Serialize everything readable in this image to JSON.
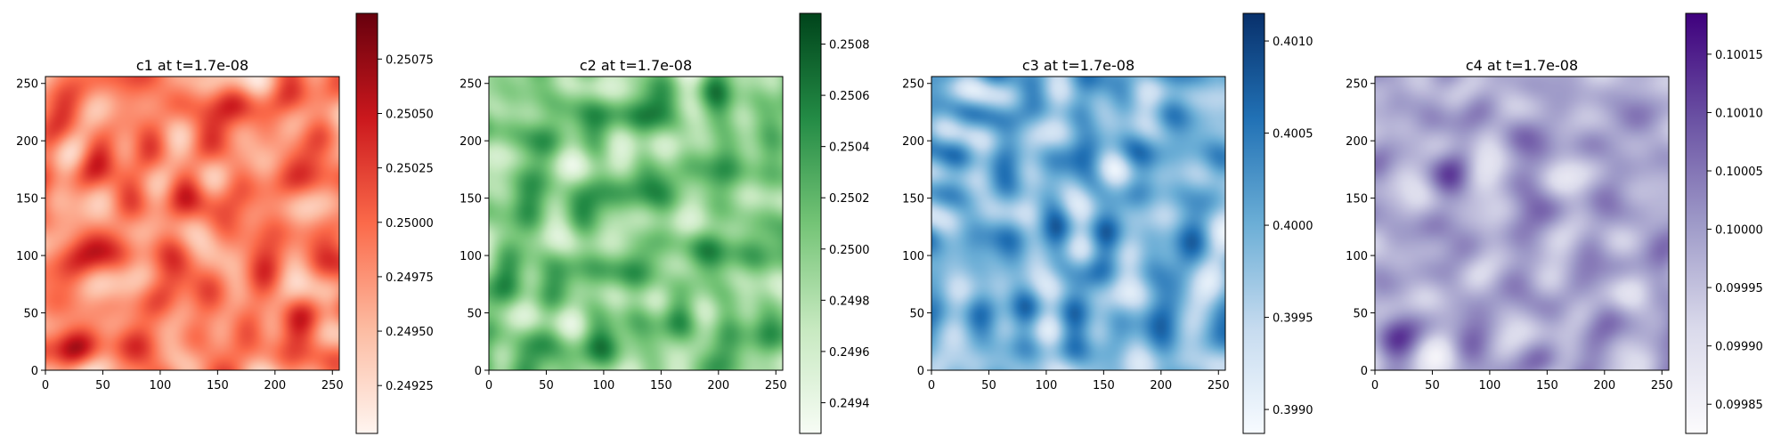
{
  "chart_data": [
    {
      "type": "heatmap",
      "title": "c1 at t=1.7e-08",
      "xlim": [
        0,
        256
      ],
      "ylim": [
        0,
        256
      ],
      "xticks": [
        "0",
        "50",
        "100",
        "150",
        "200",
        "250"
      ],
      "yticks": [
        "0",
        "50",
        "100",
        "150",
        "200",
        "250"
      ],
      "colormap": "Reds",
      "colors": [
        "#fff5f0",
        "#fcbba1",
        "#fb6a4a",
        "#cb181d",
        "#67000d"
      ],
      "color_range": [
        0.24903,
        0.25096
      ],
      "colorbar_ticks": [
        "0.24925",
        "0.24950",
        "0.24975",
        "0.25000",
        "0.25025",
        "0.25050",
        "0.25075"
      ],
      "grid": false
    },
    {
      "type": "heatmap",
      "title": "c2 at t=1.7e-08",
      "xlim": [
        0,
        256
      ],
      "ylim": [
        0,
        256
      ],
      "xticks": [
        "0",
        "50",
        "100",
        "150",
        "200",
        "250"
      ],
      "yticks": [
        "0",
        "50",
        "100",
        "150",
        "200",
        "250"
      ],
      "colormap": "Greens",
      "colors": [
        "#f7fcf5",
        "#c7e9c0",
        "#74c476",
        "#238b45",
        "#00441b"
      ],
      "color_range": [
        0.24928,
        0.25092
      ],
      "colorbar_ticks": [
        "0.2494",
        "0.2496",
        "0.2498",
        "0.2500",
        "0.2502",
        "0.2504",
        "0.2506",
        "0.2508"
      ],
      "grid": false
    },
    {
      "type": "heatmap",
      "title": "c3 at t=1.7e-08",
      "xlim": [
        0,
        256
      ],
      "ylim": [
        0,
        256
      ],
      "xticks": [
        "0",
        "50",
        "100",
        "150",
        "200",
        "250"
      ],
      "yticks": [
        "0",
        "50",
        "100",
        "150",
        "200",
        "250"
      ],
      "colormap": "Blues",
      "colors": [
        "#f7fbff",
        "#c6dbef",
        "#6baed6",
        "#2171b5",
        "#08306b"
      ],
      "color_range": [
        0.39887,
        0.40115
      ],
      "colorbar_ticks": [
        "0.3990",
        "0.3995",
        "0.4000",
        "0.4005",
        "0.4010"
      ],
      "grid": false
    },
    {
      "type": "heatmap",
      "title": "c4 at t=1.7e-08",
      "xlim": [
        0,
        256
      ],
      "ylim": [
        0,
        256
      ],
      "xticks": [
        "0",
        "50",
        "100",
        "150",
        "200",
        "250"
      ],
      "yticks": [
        "0",
        "50",
        "100",
        "150",
        "200",
        "250"
      ],
      "colormap": "Purples",
      "colors": [
        "#fcfbfd",
        "#dadaeb",
        "#9e9ac8",
        "#6a51a3",
        "#3f007d"
      ],
      "color_range": [
        0.099825,
        0.100185
      ],
      "colorbar_ticks": [
        "0.09985",
        "0.09990",
        "0.09995",
        "0.10000",
        "0.10005",
        "0.10010",
        "0.10015"
      ],
      "grid": false
    }
  ]
}
